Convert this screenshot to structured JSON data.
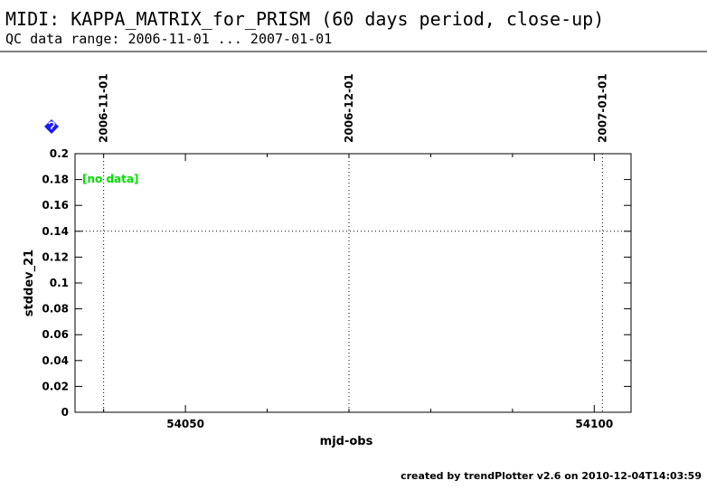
{
  "header": {
    "title": "MIDI: KAPPA_MATRIX_for_PRISM (60 days period, close-up)",
    "subtitle": "QC data range: 2006-11-01 ... 2007-01-01"
  },
  "chart_data": {
    "type": "scatter",
    "xlabel": "mjd-obs",
    "ylabel": "stddev_21",
    "xlim": [
      54036.5,
      54104.5
    ],
    "ylim": [
      0,
      0.2
    ],
    "xticks": [
      54050,
      54100
    ],
    "xminorticks": [
      54040,
      54060,
      54070,
      54080,
      54090
    ],
    "yticks": [
      0,
      0.02,
      0.04,
      0.06,
      0.08,
      0.1,
      0.12,
      0.14,
      0.16,
      0.18,
      0.2
    ],
    "reference_lines": [
      {
        "axis": "y",
        "value": 0.14
      }
    ],
    "date_markers": [
      {
        "value": 54040,
        "label": "2006-11-01"
      },
      {
        "value": 54070,
        "label": "2006-12-01"
      },
      {
        "value": 54101,
        "label": "2007-01-01"
      }
    ],
    "annotation": "[no data]",
    "annotation_color": "#00e000"
  },
  "footer": "created by trendPlotter v2.6 on 2010-12-04T14:03:59"
}
